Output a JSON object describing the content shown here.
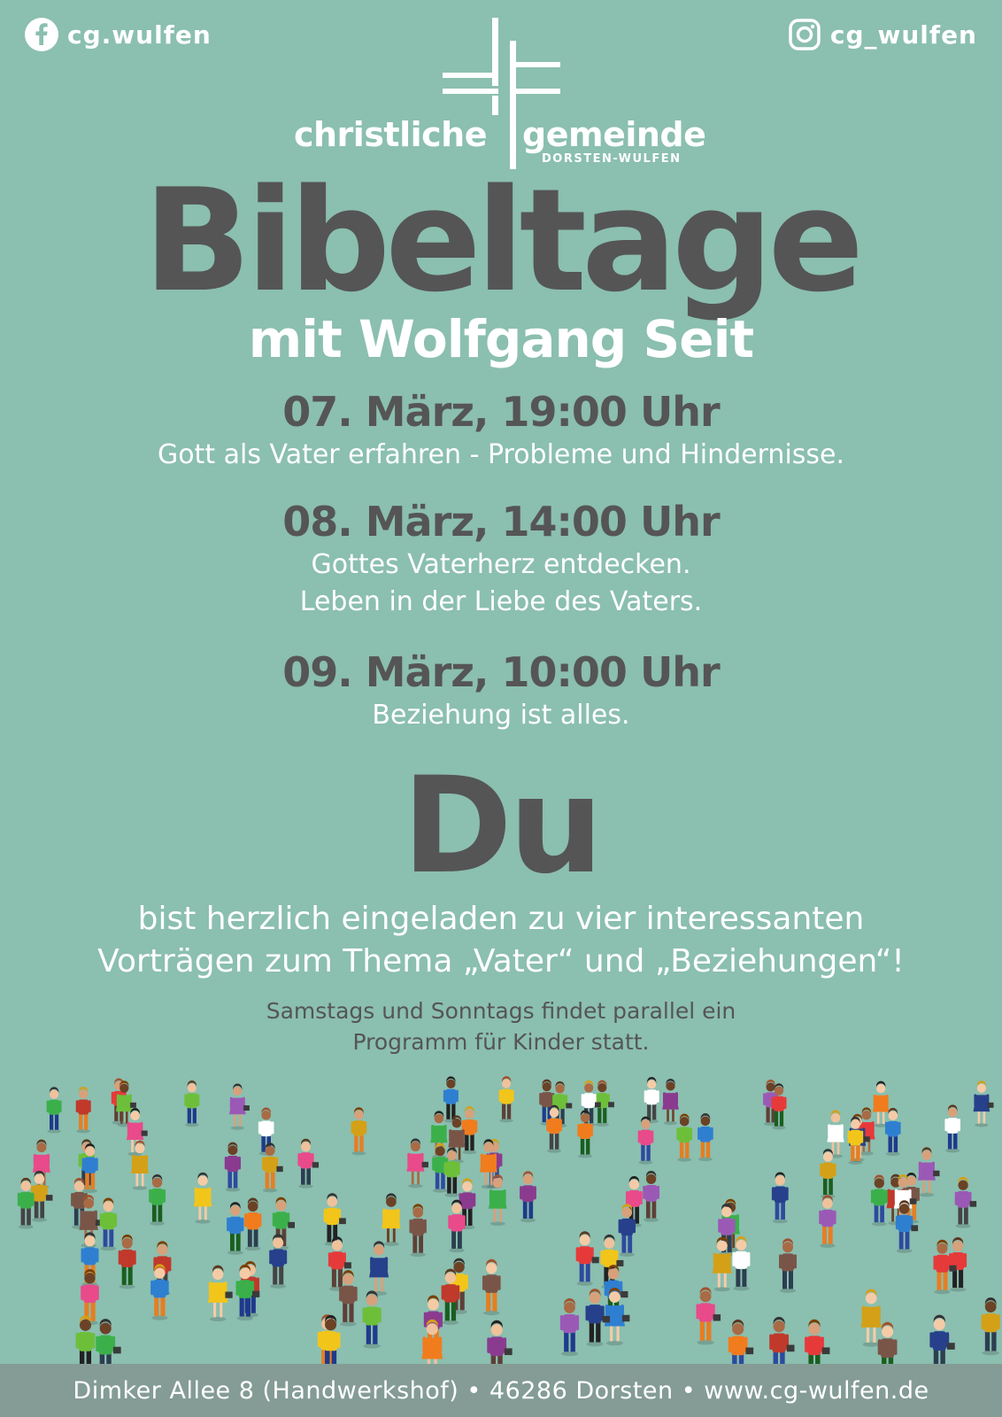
{
  "social": {
    "facebook": {
      "handle": "cg.wulfen",
      "icon": "facebook-icon"
    },
    "instagram": {
      "handle": "cg_wulfen",
      "icon": "instagram-icon"
    }
  },
  "logo": {
    "word_left": "christliche",
    "word_right": "gemeinde",
    "sub": "DORSTEN-WULFEN",
    "icon": "cross-icon"
  },
  "title": "Bibeltage",
  "subtitle": "mit Wolfgang Seit",
  "events": [
    {
      "date": "07. März, 19:00 Uhr",
      "lines": [
        "Gott als Vater erfahren - Probleme und Hindernisse."
      ]
    },
    {
      "date": "08. März, 14:00 Uhr",
      "lines": [
        "Gottes Vaterherz entdecken.",
        "Leben in der Liebe des Vaters."
      ]
    },
    {
      "date": "09. März, 10:00 Uhr",
      "lines": [
        "Beziehung ist alles."
      ]
    }
  ],
  "du": "Du",
  "invite": {
    "line1": "bist herzlich eingeladen zu vier interessanten",
    "line2": "Vorträgen zum Thema „Vater“ und „Beziehungen“!"
  },
  "note": {
    "line1": "Samstags und Sonntags findet parallel ein",
    "line2": "Programm für Kinder statt."
  },
  "footer": "Dimker Allee 8 (Handwerkshof) • 46286 Dorsten • www.cg-wulfen.de",
  "colors": {
    "background": "#8bbfb0",
    "dark_text": "#555555",
    "light_text": "#ffffff"
  },
  "crowd_illustration": "crowd-of-people-illustration"
}
